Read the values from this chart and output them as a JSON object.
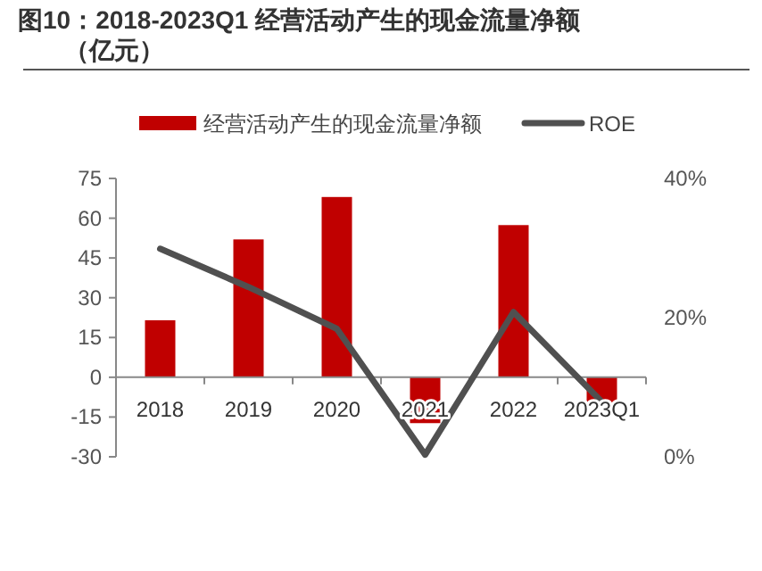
{
  "chart_data": {
    "type": "bar",
    "title": "图10：2018-2023Q1 经营活动产生的现金流量净额（亿元）",
    "categories": [
      "2018",
      "2019",
      "2020",
      "2021",
      "2022",
      "2023Q1"
    ],
    "series": [
      {
        "name": "经营活动产生的现金流量净额",
        "color": "#c00000",
        "values": [
          21.5,
          52,
          68,
          -17.3,
          57.4,
          -9.6
        ]
      },
      {
        "name": "ROE",
        "type": "line",
        "axis": "y2",
        "color": "#505050",
        "values": [
          29.9,
          24.4,
          18.4,
          0.3,
          20.8,
          7.9
        ]
      }
    ],
    "ylim": [
      -30,
      75
    ],
    "yticks": [
      -30,
      -15,
      0,
      15,
      30,
      45,
      60,
      75
    ],
    "y2lim": [
      0,
      40
    ],
    "y2ticks": [
      {
        "value": 0,
        "label": "0%"
      },
      {
        "value": 20,
        "label": "20%"
      },
      {
        "value": 40,
        "label": "40%"
      }
    ],
    "legend": "top",
    "grid": false
  }
}
